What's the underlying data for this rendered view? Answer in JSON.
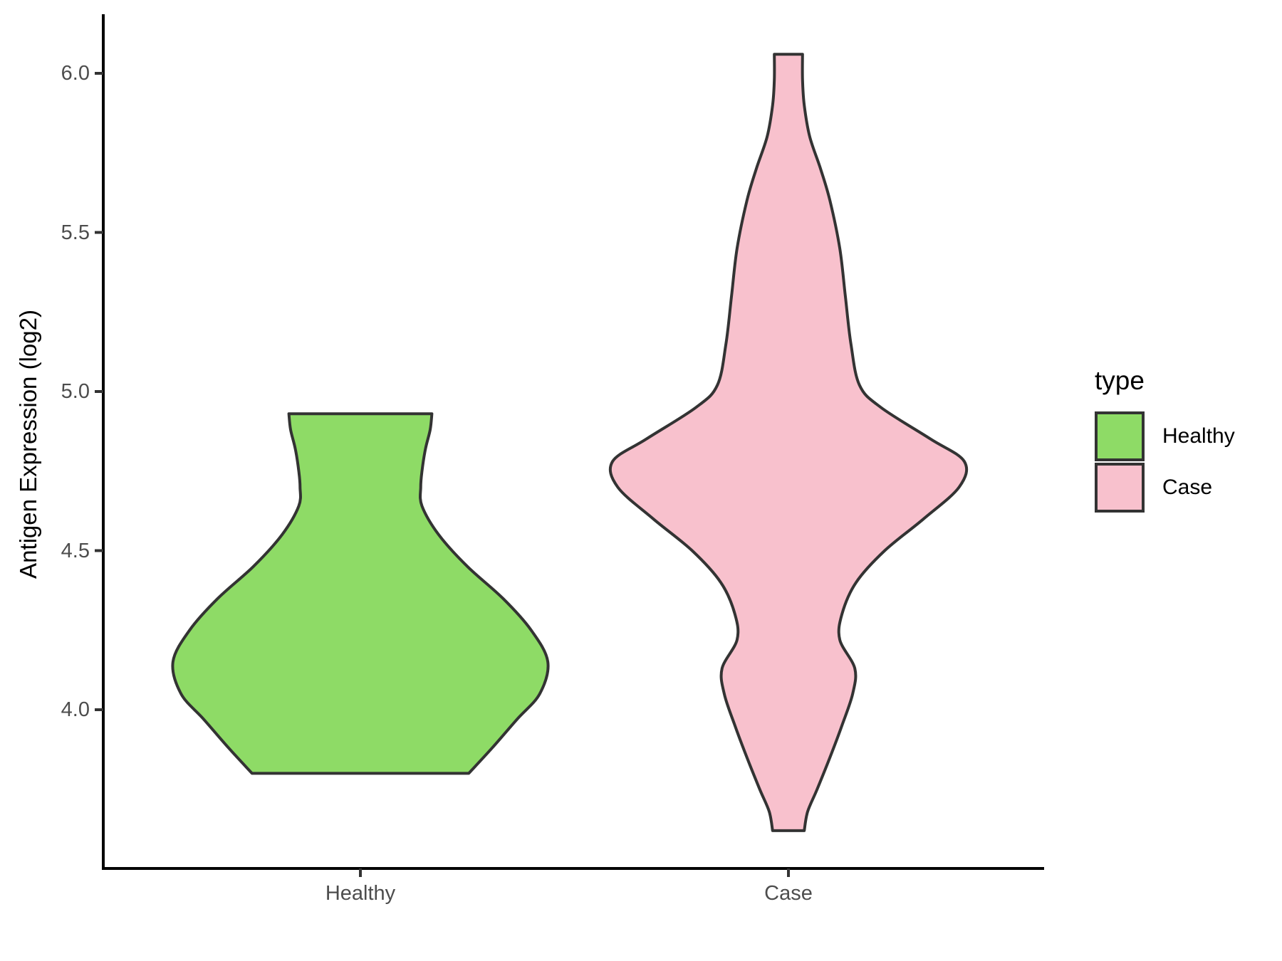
{
  "chart_data": {
    "type": "violin",
    "title": "",
    "xlabel": "",
    "ylabel": "Antigen Expression (log2)",
    "categories": [
      "Healthy",
      "Case"
    ],
    "y_ticks": {
      "values": [
        6.0,
        5.5,
        5.0,
        4.5,
        4.0
      ],
      "labels": [
        "6.0",
        "5.5",
        "5.0",
        "4.5",
        "4.0"
      ]
    },
    "ylim_shown": [
      3.5,
      6.18
    ],
    "grid": false,
    "background": "#FFFFFF",
    "axis_color": "#000000",
    "tick_color": "#333333",
    "tick_label_color": "#4D4D4D",
    "outline_color": "#333333",
    "legend": {
      "title": "type",
      "position": "right",
      "entries": [
        {
          "label": "Healthy",
          "color": "#8EDB66"
        },
        {
          "label": "Case",
          "color": "#F8C1CD"
        }
      ]
    },
    "series": [
      {
        "name": "Healthy",
        "fill": "#8EDB66",
        "category_index": 1,
        "value_range": [
          3.8,
          4.93
        ],
        "profile_value_halfwidth": [
          [
            4.93,
            0.167
          ],
          [
            4.88,
            0.163
          ],
          [
            4.82,
            0.152
          ],
          [
            4.75,
            0.144
          ],
          [
            4.7,
            0.141
          ],
          [
            4.64,
            0.144
          ],
          [
            4.55,
            0.183
          ],
          [
            4.45,
            0.25
          ],
          [
            4.35,
            0.333
          ],
          [
            4.25,
            0.399
          ],
          [
            4.15,
            0.438
          ],
          [
            4.05,
            0.419
          ],
          [
            3.97,
            0.366
          ],
          [
            3.88,
            0.308
          ],
          [
            3.8,
            0.253
          ]
        ]
      },
      {
        "name": "Case",
        "fill": "#F8C1CD",
        "category_index": 2,
        "value_range": [
          3.62,
          6.06
        ],
        "profile_value_halfwidth": [
          [
            6.06,
            0.033
          ],
          [
            5.98,
            0.033
          ],
          [
            5.9,
            0.037
          ],
          [
            5.8,
            0.05
          ],
          [
            5.7,
            0.075
          ],
          [
            5.6,
            0.097
          ],
          [
            5.45,
            0.12
          ],
          [
            5.3,
            0.133
          ],
          [
            5.15,
            0.146
          ],
          [
            5.02,
            0.166
          ],
          [
            4.95,
            0.216
          ],
          [
            4.85,
            0.333
          ],
          [
            4.78,
            0.411
          ],
          [
            4.7,
            0.399
          ],
          [
            4.6,
            0.316
          ],
          [
            4.5,
            0.225
          ],
          [
            4.4,
            0.158
          ],
          [
            4.3,
            0.125
          ],
          [
            4.22,
            0.12
          ],
          [
            4.13,
            0.155
          ],
          [
            4.05,
            0.15
          ],
          [
            3.95,
            0.125
          ],
          [
            3.85,
            0.097
          ],
          [
            3.75,
            0.067
          ],
          [
            3.68,
            0.045
          ],
          [
            3.62,
            0.037
          ]
        ]
      }
    ]
  }
}
